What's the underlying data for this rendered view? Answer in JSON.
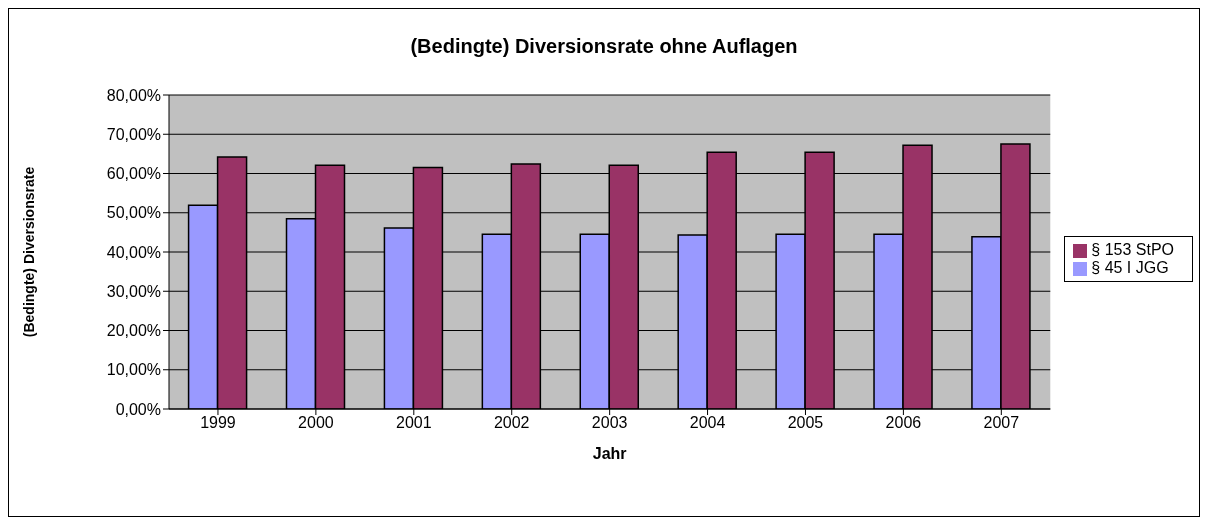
{
  "chart_data": {
    "type": "bar",
    "title": "(Bedingte) Diversionsrate ohne Auflagen",
    "xlabel": "Jahr",
    "ylabel": "(Bedingte) Diversionsrate",
    "categories": [
      "1999",
      "2000",
      "2001",
      "2002",
      "2003",
      "2004",
      "2005",
      "2006",
      "2007"
    ],
    "series": [
      {
        "name": "§ 45 I JGG",
        "color": "#9999ff",
        "values": [
          51.9,
          48.5,
          46.1,
          44.5,
          44.5,
          44.3,
          44.5,
          44.5,
          43.9
        ]
      },
      {
        "name": "§ 153 StPO",
        "color": "#993366",
        "values": [
          64.2,
          62.1,
          61.5,
          62.4,
          62.1,
          65.4,
          65.4,
          67.2,
          67.5
        ]
      }
    ],
    "ylim": [
      0,
      80
    ],
    "yticks": [
      {
        "value": 0,
        "label": "0,00%"
      },
      {
        "value": 10,
        "label": "10,00%"
      },
      {
        "value": 20,
        "label": "20,00%"
      },
      {
        "value": 30,
        "label": "30,00%"
      },
      {
        "value": 40,
        "label": "40,00%"
      },
      {
        "value": 50,
        "label": "50,00%"
      },
      {
        "value": 60,
        "label": "60,00%"
      },
      {
        "value": 70,
        "label": "70,00%"
      },
      {
        "value": 80,
        "label": "80,00%"
      }
    ],
    "grid": "y",
    "legend": "right"
  }
}
